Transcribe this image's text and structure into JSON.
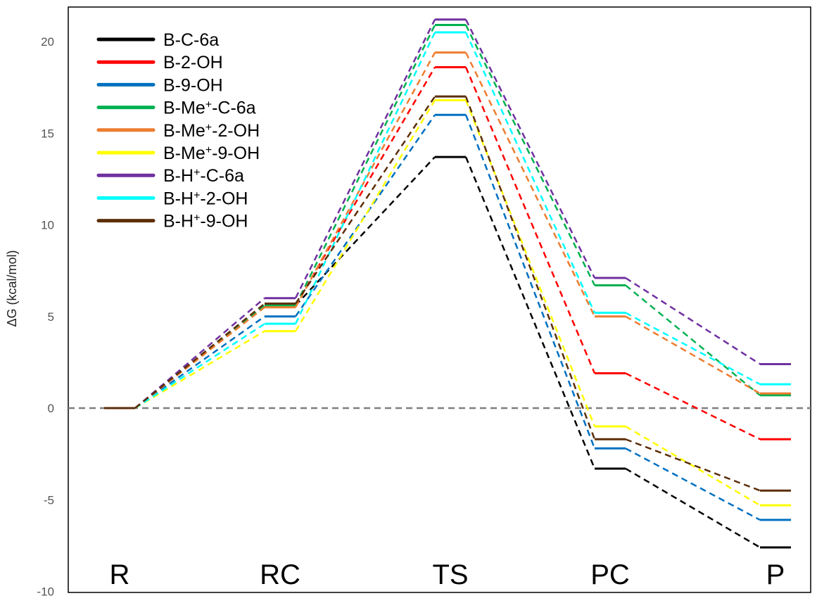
{
  "chart_data": {
    "type": "line",
    "title": "",
    "xlabel": "",
    "ylabel": "ΔG (kcal/mol)",
    "ylim": [
      -10,
      22
    ],
    "yticks": [
      20,
      15,
      10,
      5,
      0,
      -5,
      -10
    ],
    "stages": [
      "R",
      "RC",
      "TS",
      "PC",
      "P"
    ],
    "reference_line": {
      "y": 0,
      "style": "dashed",
      "color": "#7f7f7f"
    },
    "legend_position": "top-left",
    "series": [
      {
        "name": "B-C-6a",
        "name_parts": [
          [
            "B-C-6a",
            false
          ]
        ],
        "color": "#000000",
        "values": [
          0,
          5.6,
          13.7,
          -3.3,
          -7.6
        ]
      },
      {
        "name": "B-2-OH",
        "name_parts": [
          [
            "B-2-OH",
            false
          ]
        ],
        "color": "#ff0000",
        "values": [
          0,
          5.6,
          18.6,
          1.9,
          -1.7
        ]
      },
      {
        "name": "B-9-OH",
        "name_parts": [
          [
            "B-9-OH",
            false
          ]
        ],
        "color": "#0070c0",
        "values": [
          0,
          5.0,
          16.0,
          -2.2,
          -6.1
        ]
      },
      {
        "name": "B-Me+-C-6a",
        "name_parts": [
          [
            "B-Me",
            false
          ],
          [
            "+",
            true
          ],
          [
            "-C-6a",
            false
          ]
        ],
        "color": "#00b050",
        "values": [
          0,
          5.6,
          20.9,
          6.7,
          0.7
        ]
      },
      {
        "name": "B-Me+-2-OH",
        "name_parts": [
          [
            "B-Me",
            false
          ],
          [
            "+",
            true
          ],
          [
            "-2-OH",
            false
          ]
        ],
        "color": "#ed7d31",
        "values": [
          0,
          5.5,
          19.4,
          5.0,
          0.8
        ]
      },
      {
        "name": "B-Me+-9-OH",
        "name_parts": [
          [
            "B-Me",
            false
          ],
          [
            "+",
            true
          ],
          [
            "-9-OH",
            false
          ]
        ],
        "color": "#ffff00",
        "values": [
          0,
          4.2,
          16.8,
          -1.0,
          -5.3
        ]
      },
      {
        "name": "B-H+-C-6a",
        "name_parts": [
          [
            "B-H",
            false
          ],
          [
            "+",
            true
          ],
          [
            "-C-6a",
            false
          ]
        ],
        "color": "#7030a0",
        "values": [
          0,
          6.0,
          21.2,
          7.1,
          2.4
        ]
      },
      {
        "name": "B-H+-2-OH",
        "name_parts": [
          [
            "B-H",
            false
          ],
          [
            "+",
            true
          ],
          [
            "-2-OH",
            false
          ]
        ],
        "color": "#00ffff",
        "values": [
          0,
          4.6,
          20.5,
          5.2,
          1.3
        ]
      },
      {
        "name": "B-H+-9-OH",
        "name_parts": [
          [
            "B-H",
            false
          ],
          [
            "+",
            true
          ],
          [
            "-9-OH",
            false
          ]
        ],
        "color": "#5c2e08",
        "values": [
          0,
          5.7,
          17.0,
          -1.7,
          -4.5
        ]
      }
    ]
  }
}
